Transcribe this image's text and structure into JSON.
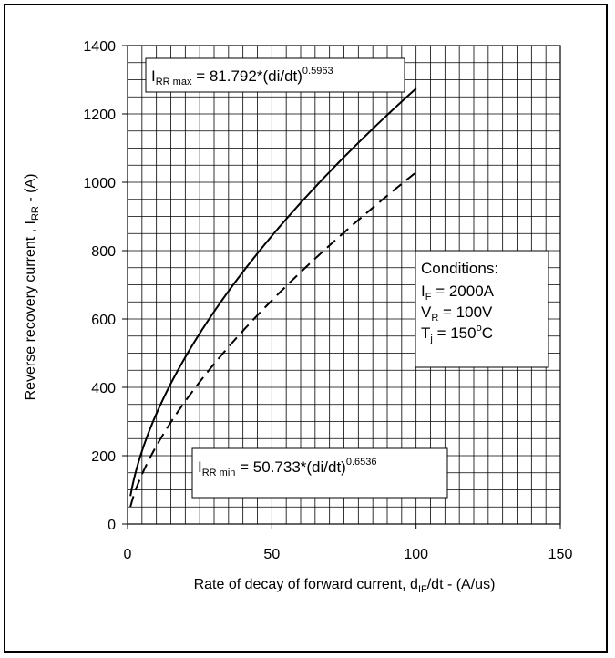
{
  "chart_data": {
    "type": "line",
    "title": "",
    "xlabel": {
      "main": "Rate of decay of forward current,  d",
      "sub": "IF",
      "rest": "/dt - (A/us)"
    },
    "ylabel": {
      "main": "Reverse recovery current , I",
      "sub": "RR",
      "rest": " - (A)"
    },
    "xlim": [
      0,
      150
    ],
    "ylim": [
      0,
      1400
    ],
    "xticks": [
      "0",
      "50",
      "100",
      "150"
    ],
    "yticks": [
      "0",
      "200",
      "400",
      "600",
      "800",
      "1000",
      "1200",
      "1400"
    ],
    "grid": true,
    "series": [
      {
        "style": "solid",
        "formula": {
          "a": 81.792,
          "b": 0.5963
        },
        "x": [
          1,
          2,
          5,
          10,
          15,
          20,
          30,
          40,
          50,
          60,
          70,
          80,
          90,
          100
        ],
        "values": [
          81.8,
          123.6,
          214.4,
          324.0,
          413.4,
          489.7,
          622.8,
          740.0,
          846.9,
          944.0,
          1037.0,
          1122.0,
          1204.0,
          1277.0
        ]
      },
      {
        "style": "dashed",
        "formula": {
          "a": 50.733,
          "b": 0.6536
        },
        "x": [
          1,
          2,
          5,
          10,
          15,
          20,
          30,
          40,
          50,
          60,
          70,
          80,
          90,
          100
        ],
        "values": [
          50.7,
          79.7,
          145.6,
          228.5,
          298.7,
          358.7,
          467.1,
          563.0,
          651.0,
          733.0,
          810.0,
          883.0,
          953.0,
          1021.0
        ]
      }
    ],
    "annotations": {
      "max_eq": {
        "prefix": "I",
        "sub": "RR max",
        "eq": " = 81.792*(di/dt)",
        "sup": "0.5963"
      },
      "min_eq": {
        "prefix": "I",
        "sub": "RR min",
        "eq": " = 50.733*(di/dt)",
        "sup": "0.6536"
      },
      "conditions": {
        "title": "Conditions:",
        "lines": [
          {
            "pre": "I",
            "sub": "F",
            "post": " = 2000A"
          },
          {
            "pre": "V",
            "sub": "R",
            "post": " = 100V"
          },
          {
            "pre": "T",
            "sub": "j",
            "post": " = 150",
            "sup": "o",
            "tail": "C"
          }
        ]
      }
    }
  }
}
